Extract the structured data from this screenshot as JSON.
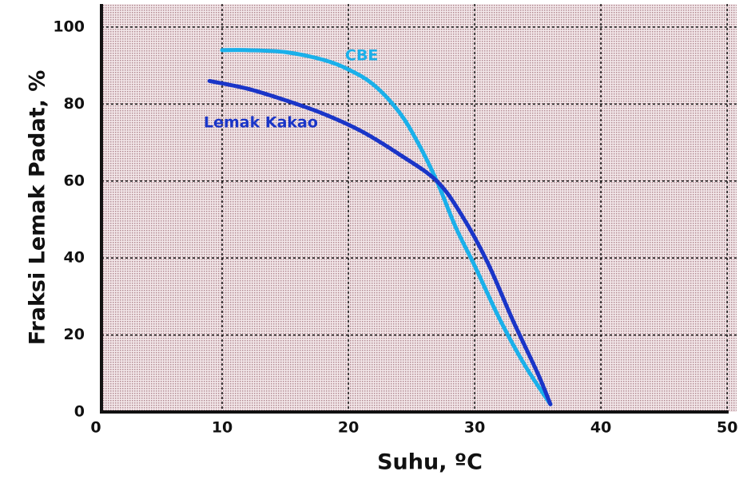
{
  "chart_data": {
    "type": "line",
    "x_label": "Suhu, ºC",
    "y_label": "Fraksi Lemak Padat, %",
    "series": [
      {
        "name": "CBE",
        "color": "#1ab0ea",
        "x": [
          10,
          12,
          15,
          18,
          20,
          22,
          24,
          25.5,
          27,
          28.5,
          30,
          32,
          34,
          36
        ],
        "values": [
          94,
          94,
          93.5,
          91.5,
          89,
          85,
          78,
          70,
          60,
          48,
          38,
          24,
          12,
          2
        ]
      },
      {
        "name": "Lemak Kakao",
        "color": "#1a35c8",
        "x": [
          9,
          12,
          15,
          18,
          21,
          24,
          27,
          29,
          31,
          33,
          35,
          36
        ],
        "values": [
          86,
          84,
          81,
          77.5,
          73,
          67,
          60,
          51,
          39,
          24,
          10,
          2
        ]
      }
    ],
    "xlim": [
      0,
      51
    ],
    "xticks": [
      0,
      10,
      20,
      30,
      40,
      50
    ],
    "ylim": [
      0,
      106
    ],
    "yticks": [
      0,
      20,
      40,
      60,
      80,
      100
    ],
    "grid": true
  }
}
